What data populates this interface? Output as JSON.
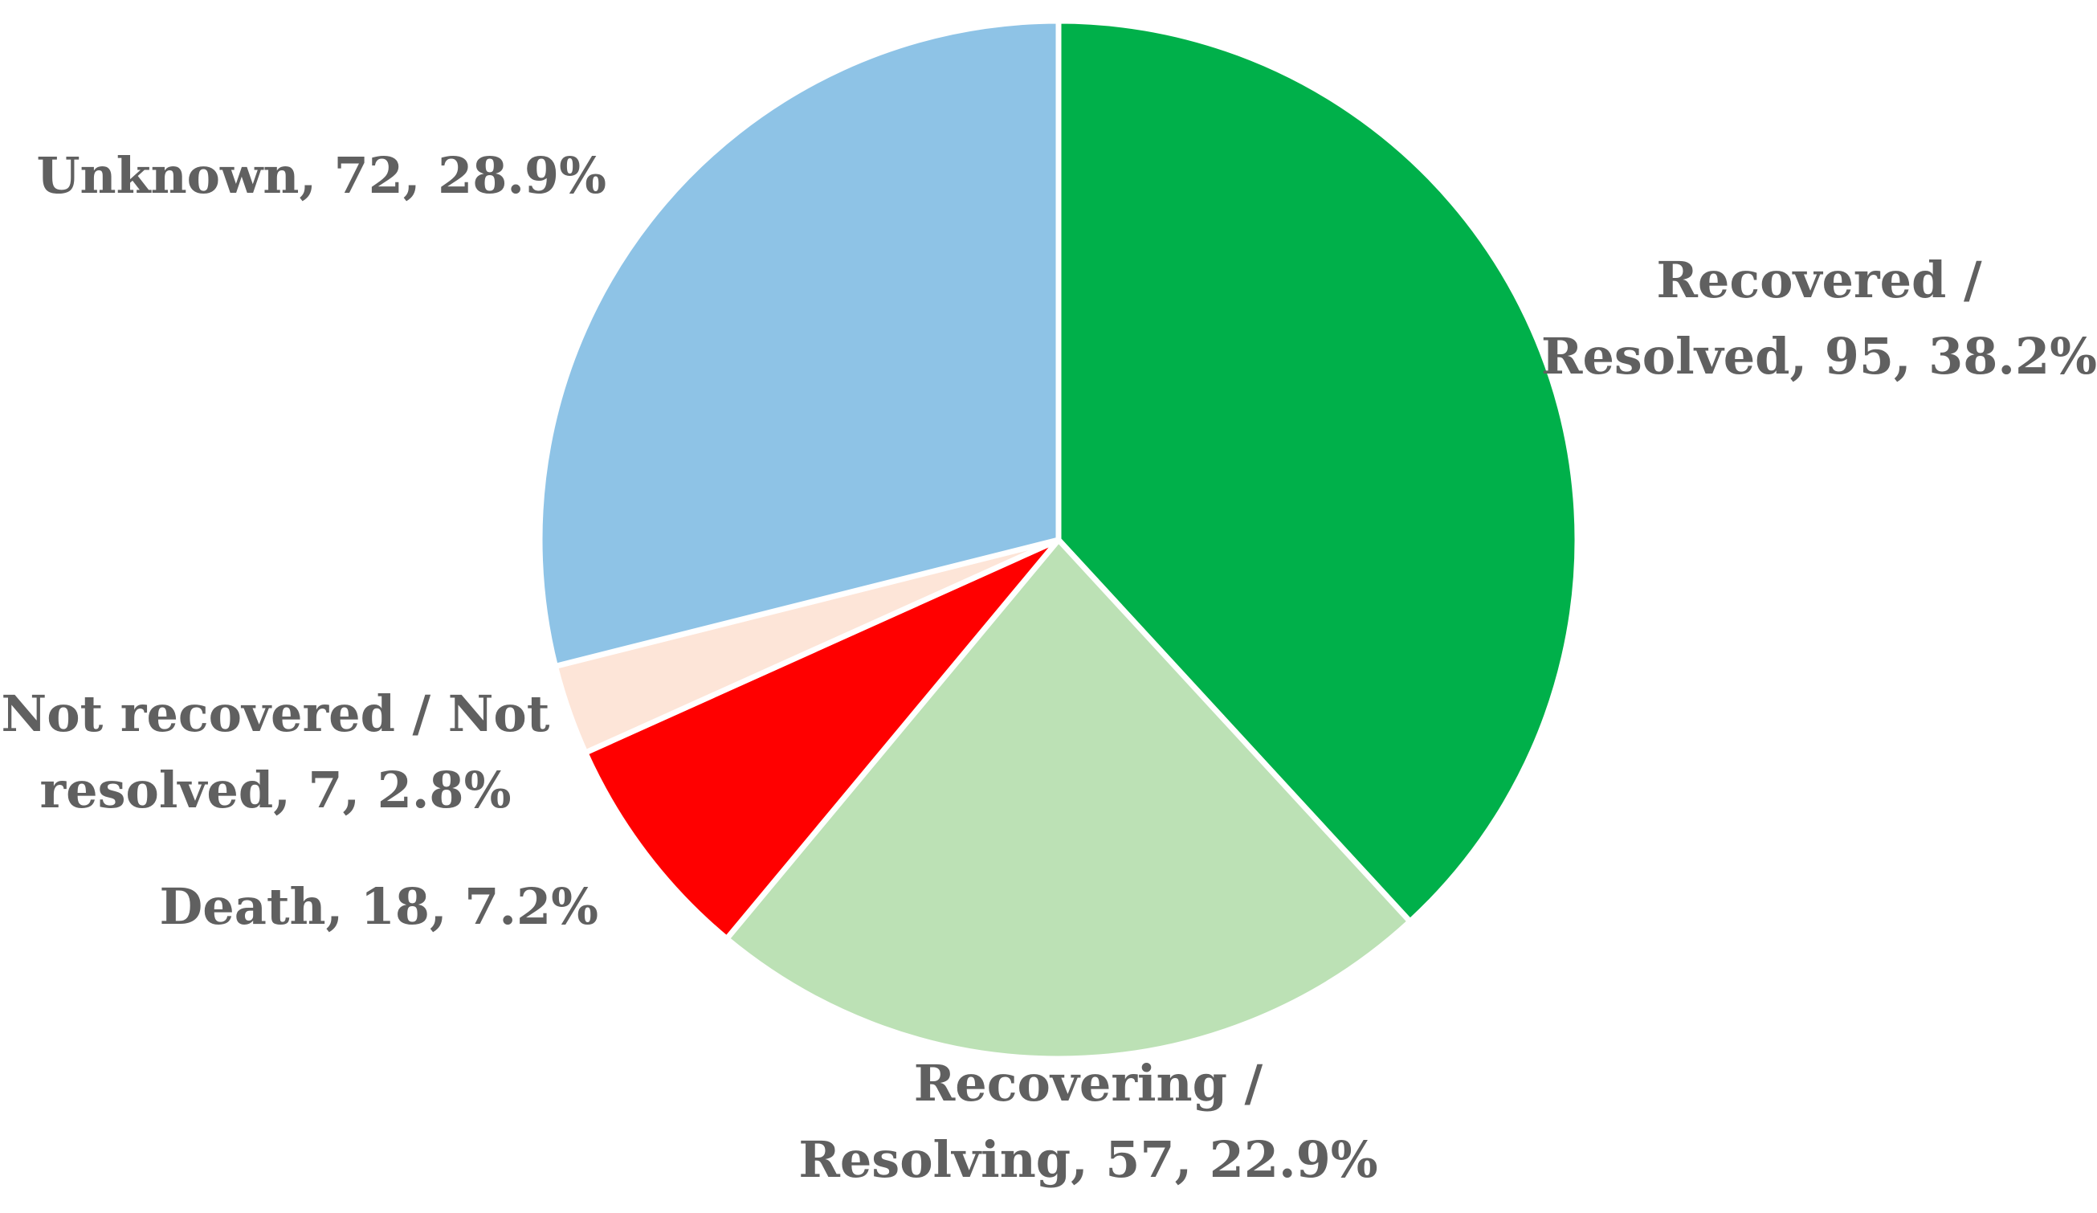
{
  "chart_data": {
    "type": "pie",
    "title": "",
    "slices": [
      {
        "category": "Recovered / Resolved",
        "value": 95,
        "percent": 38.2,
        "color": "#00b04a",
        "label_lines": [
          "Recovered /",
          "Resolved, 95, 38.2%"
        ]
      },
      {
        "category": "Recovering / Resolving",
        "value": 57,
        "percent": 22.9,
        "color": "#bce1b5",
        "label_lines": [
          "Recovering /",
          "Resolving, 57, 22.9%"
        ]
      },
      {
        "category": "Death",
        "value": 18,
        "percent": 7.2,
        "color": "#ff0000",
        "label_lines": [
          "Death, 18, 7.2%"
        ]
      },
      {
        "category": "Not recovered / Not resolved",
        "value": 7,
        "percent": 2.8,
        "color": "#fde5d8",
        "label_lines": [
          "Not recovered / Not",
          "resolved, 7, 2.8%"
        ]
      },
      {
        "category": "Unknown",
        "value": 72,
        "percent": 28.9,
        "color": "#8ec3e6",
        "label_lines": [
          "Unknown, 72, 28.9%"
        ]
      }
    ],
    "start_angle_deg": 0,
    "direction": "clockwise",
    "legend": "none",
    "data_labels": "category, value, percent"
  }
}
